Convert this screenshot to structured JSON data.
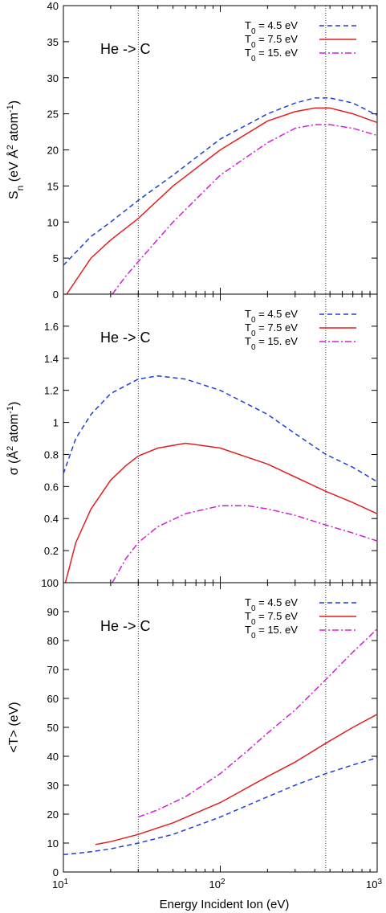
{
  "chart_data": [
    {
      "type": "line",
      "annotation": "He -> C",
      "ylabel_html": "S<tspan baseline-shift='sub' font-size='12'>n</tspan>  (eV Å<tspan baseline-shift='super' font-size='11'>2</tspan> atom<tspan baseline-shift='super' font-size='11'>-1</tspan>)",
      "ylim": [
        0,
        40
      ],
      "yticks": [
        0,
        5,
        10,
        15,
        20,
        25,
        30,
        35,
        40
      ],
      "xscale": "log",
      "xlim": [
        10,
        1000
      ],
      "vlines": [
        30,
        470
      ],
      "legend_position": "top-right",
      "series": [
        {
          "name": "T0 = 4.5 eV",
          "color": "#1f3fd6",
          "dash": "6,4",
          "x": [
            10,
            15,
            20,
            30,
            50,
            100,
            200,
            300,
            400,
            500,
            700,
            1000
          ],
          "y": [
            4.0,
            8.0,
            10.0,
            13.0,
            16.5,
            21.5,
            25.0,
            26.5,
            27.2,
            27.2,
            26.5,
            24.8
          ]
        },
        {
          "name": "T0 = 7.5 eV",
          "color": "#e21f1f",
          "dash": "",
          "x": [
            10.5,
            15,
            20,
            30,
            50,
            100,
            200,
            300,
            400,
            500,
            700,
            1000
          ],
          "y": [
            0.0,
            5.0,
            7.5,
            10.5,
            15.0,
            20.0,
            24.0,
            25.3,
            25.8,
            25.8,
            25.0,
            23.8
          ]
        },
        {
          "name": "T0 = 15. eV",
          "color": "#d21fd6",
          "dash": "8,3,2,3",
          "x": [
            20.5,
            25,
            30,
            50,
            100,
            200,
            300,
            400,
            500,
            700,
            1000
          ],
          "y": [
            0.0,
            2.5,
            4.5,
            10.0,
            16.5,
            21.0,
            23.0,
            23.5,
            23.5,
            23.0,
            22.0
          ]
        }
      ]
    },
    {
      "type": "line",
      "annotation": "He -> C",
      "ylabel_html": "σ  (Å<tspan baseline-shift='super' font-size='11'>2</tspan> atom<tspan baseline-shift='super' font-size='11'>-1</tspan>)",
      "ylim": [
        0,
        1.8
      ],
      "yticks": [
        0.2,
        0.4,
        0.6,
        0.8,
        1,
        1.2,
        1.4,
        1.6
      ],
      "xscale": "log",
      "xlim": [
        10,
        1000
      ],
      "vlines": [
        30,
        470
      ],
      "legend_position": "top-right",
      "series": [
        {
          "name": "T0 = 4.5 eV",
          "color": "#1f3fd6",
          "dash": "6,4",
          "x": [
            10,
            12,
            15,
            20,
            30,
            40,
            60,
            100,
            200,
            300,
            470,
            700,
            1000
          ],
          "y": [
            0.68,
            0.9,
            1.05,
            1.18,
            1.27,
            1.29,
            1.27,
            1.2,
            1.05,
            0.93,
            0.8,
            0.72,
            0.63
          ]
        },
        {
          "name": "T0 = 7.5 eV",
          "color": "#e21f1f",
          "dash": "",
          "x": [
            10.3,
            12,
            15,
            20,
            25,
            30,
            40,
            60,
            100,
            200,
            470,
            700,
            1000
          ],
          "y": [
            0.0,
            0.25,
            0.46,
            0.64,
            0.73,
            0.79,
            0.84,
            0.87,
            0.84,
            0.74,
            0.57,
            0.5,
            0.43
          ]
        },
        {
          "name": "T0 = 15. eV",
          "color": "#d21fd6",
          "dash": "8,3,2,3",
          "x": [
            20.5,
            25,
            30,
            40,
            60,
            100,
            150,
            200,
            300,
            470,
            700,
            1000
          ],
          "y": [
            0.0,
            0.15,
            0.25,
            0.35,
            0.43,
            0.48,
            0.48,
            0.46,
            0.42,
            0.36,
            0.31,
            0.26
          ]
        }
      ]
    },
    {
      "type": "line",
      "annotation": "He -> C",
      "ylabel_html": "&lt;T&gt;  (eV)",
      "ylim": [
        0,
        100
      ],
      "yticks": [
        0,
        10,
        20,
        30,
        40,
        50,
        60,
        70,
        80,
        90,
        100
      ],
      "xscale": "log",
      "xlim": [
        10,
        1000
      ],
      "xlabel": "Energy Incident Ion  (eV)",
      "vlines": [
        30,
        470
      ],
      "legend_position": "top-right",
      "series": [
        {
          "name": "T0 = 4.5 eV",
          "color": "#1f3fd6",
          "dash": "6,4",
          "x": [
            10,
            15,
            20,
            30,
            50,
            100,
            200,
            300,
            470,
            700,
            1000
          ],
          "y": [
            6.0,
            7.0,
            8.0,
            10.0,
            13.0,
            19.0,
            26.0,
            30.0,
            34.0,
            37.0,
            39.5
          ]
        },
        {
          "name": "T0 = 7.5 eV",
          "color": "#e21f1f",
          "dash": "",
          "x": [
            16,
            20,
            30,
            50,
            100,
            200,
            300,
            470,
            700,
            1000
          ],
          "y": [
            9.5,
            10.5,
            13.0,
            17.0,
            24.0,
            33.0,
            38.0,
            44.5,
            50.0,
            54.5
          ]
        },
        {
          "name": "T0 = 15. eV",
          "color": "#d21fd6",
          "dash": "8,3,2,3",
          "x": [
            30,
            40,
            60,
            100,
            150,
            200,
            300,
            470,
            700,
            1000
          ],
          "y": [
            19.0,
            21.5,
            26.0,
            34.0,
            42.0,
            48.0,
            56.0,
            66.5,
            76.0,
            84.0
          ]
        }
      ]
    }
  ],
  "xtick_labels": [
    {
      "base": "10",
      "exp": "1"
    },
    {
      "base": "10",
      "exp": "2"
    },
    {
      "base": "10",
      "exp": "3"
    }
  ]
}
